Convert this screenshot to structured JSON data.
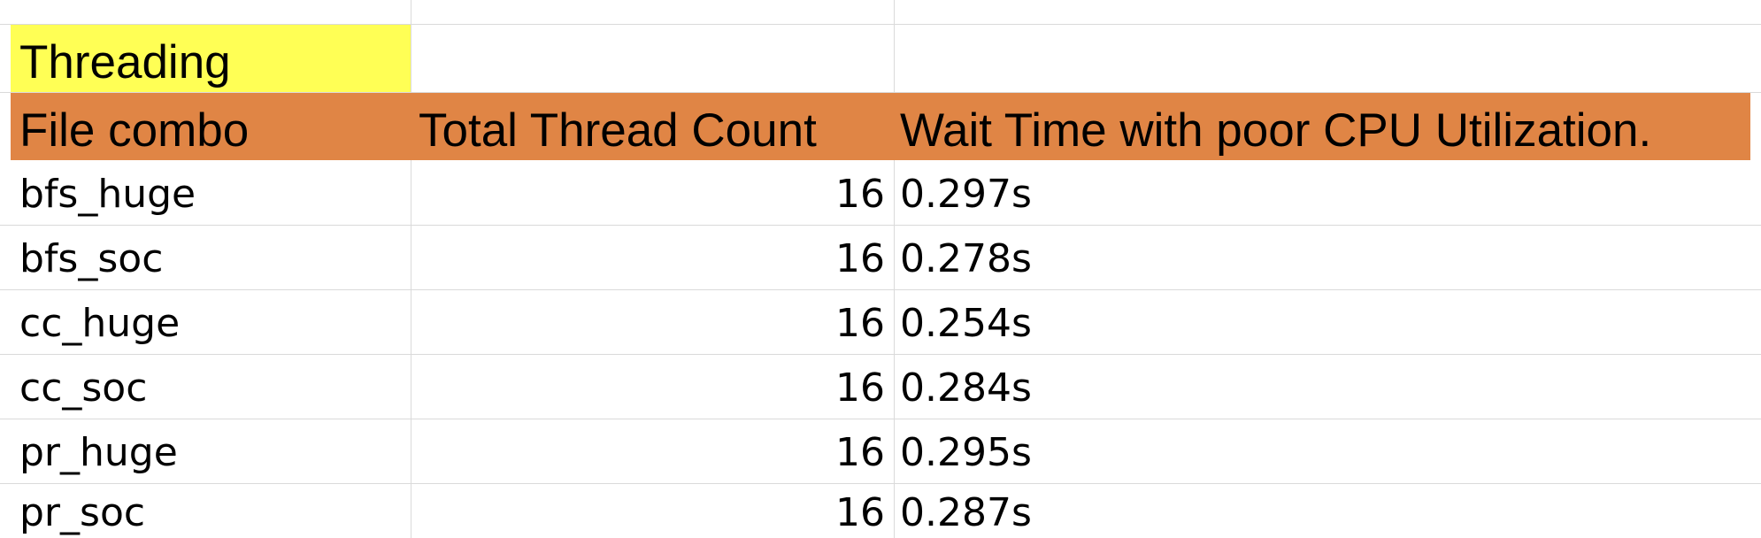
{
  "sheet": {
    "title": "Threading",
    "columns": [
      "File combo",
      "Total Thread Count",
      "Wait Time with poor CPU Utilization."
    ],
    "rows": [
      [
        "bfs_huge",
        "16",
        "0.297s"
      ],
      [
        "bfs_soc",
        "16",
        "0.278s"
      ],
      [
        "cc_huge",
        "16",
        "0.254s"
      ],
      [
        "cc_soc",
        "16",
        "0.284s"
      ],
      [
        "pr_huge",
        "16",
        "0.295s"
      ],
      [
        "pr_soc",
        "16",
        "0.287s"
      ]
    ]
  },
  "colors": {
    "title_fill": "#ffff55",
    "header_fill": "#e08545",
    "gridline": "#dadada"
  }
}
